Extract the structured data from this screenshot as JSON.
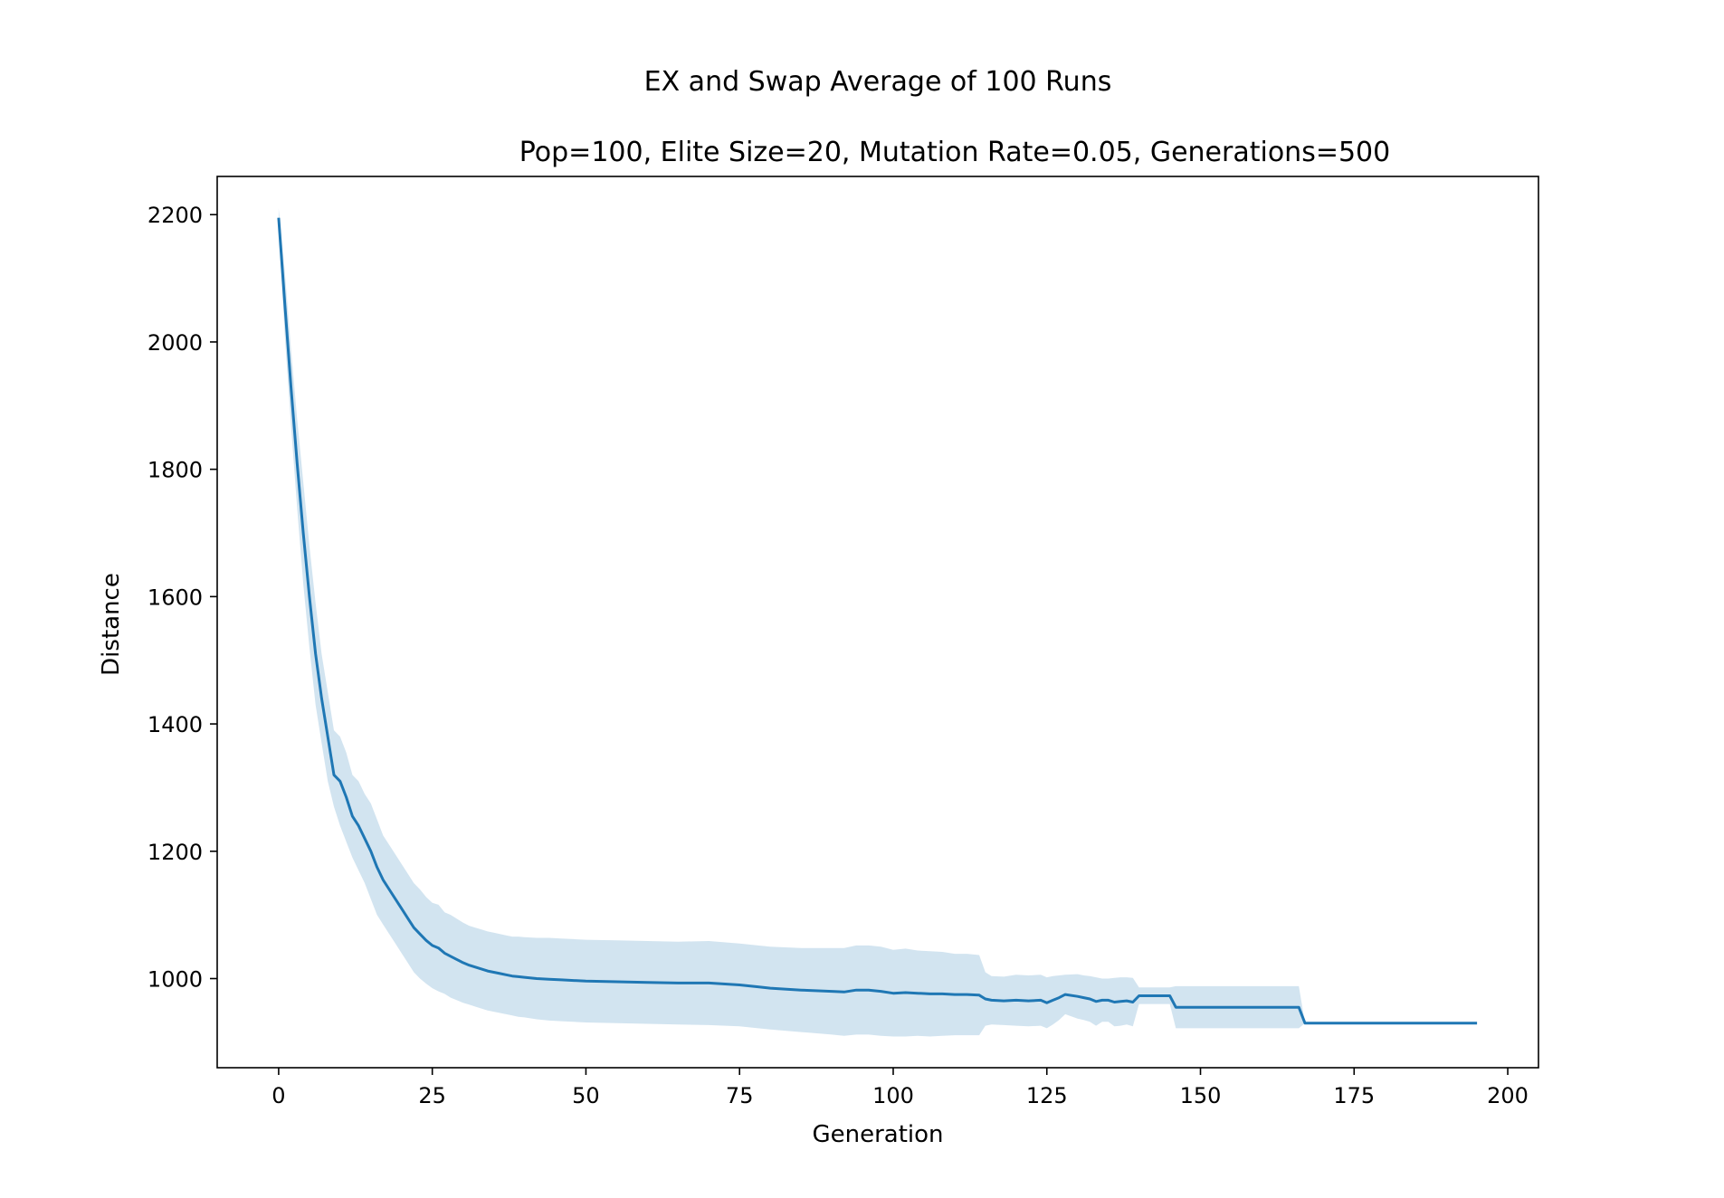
{
  "chart_data": {
    "type": "line",
    "title": "EX and Swap Average of 100 Runs",
    "subtitle": "Pop=100, Elite Size=20, Mutation Rate=0.05, Generations=500",
    "xlabel": "Generation",
    "ylabel": "Distance",
    "xlim": [
      -10,
      205
    ],
    "ylim": [
      860,
      2260
    ],
    "xticks": [
      0,
      25,
      50,
      75,
      100,
      125,
      150,
      175,
      200
    ],
    "yticks": [
      1000,
      1200,
      1400,
      1600,
      1800,
      2000,
      2200
    ],
    "grid": false,
    "colors": {
      "line": "#1f77b4",
      "band": "#1f77b4"
    },
    "series": [
      {
        "x": [
          0,
          1,
          2,
          3,
          4,
          5,
          6,
          7,
          8,
          9,
          10,
          11,
          12,
          13,
          14,
          15,
          16,
          17,
          18,
          19,
          20,
          21,
          22,
          23,
          24,
          25,
          26,
          27,
          28,
          29,
          30,
          31,
          32,
          33,
          34,
          35,
          36,
          37,
          38,
          39,
          40,
          42,
          44,
          46,
          48,
          50,
          55,
          60,
          65,
          70,
          75,
          78,
          80,
          85,
          90,
          92,
          94,
          96,
          98,
          100,
          102,
          104,
          106,
          108,
          110,
          112,
          114,
          115,
          116,
          118,
          120,
          122,
          124,
          125,
          126,
          127,
          128,
          130,
          131,
          132,
          133,
          134,
          135,
          136,
          137,
          138,
          139,
          140,
          141,
          142,
          143,
          144,
          145,
          146,
          150,
          155,
          160,
          165,
          166,
          167,
          168,
          170,
          175,
          180,
          185,
          190,
          195
        ],
        "y": [
          2195,
          2060,
          1930,
          1810,
          1700,
          1600,
          1510,
          1440,
          1380,
          1320,
          1310,
          1285,
          1255,
          1240,
          1220,
          1200,
          1175,
          1155,
          1140,
          1125,
          1110,
          1095,
          1080,
          1070,
          1060,
          1052,
          1048,
          1040,
          1035,
          1030,
          1025,
          1021,
          1018,
          1015,
          1012,
          1010,
          1008,
          1006,
          1004,
          1003,
          1002,
          1000,
          999,
          998,
          997,
          996,
          995,
          994,
          993,
          993,
          990,
          987,
          985,
          982,
          980,
          979,
          982,
          982,
          980,
          977,
          978,
          977,
          976,
          976,
          975,
          975,
          974,
          968,
          966,
          965,
          966,
          965,
          966,
          962,
          966,
          970,
          975,
          972,
          970,
          968,
          964,
          966,
          966,
          963,
          964,
          965,
          963,
          973,
          973,
          973,
          973,
          973,
          973,
          955,
          955,
          955,
          955,
          955,
          955,
          930,
          930,
          930,
          930,
          930,
          930,
          930,
          930
        ],
        "lower": [
          2180,
          2010,
          1870,
          1740,
          1620,
          1520,
          1430,
          1370,
          1310,
          1270,
          1240,
          1215,
          1190,
          1170,
          1150,
          1125,
          1100,
          1085,
          1070,
          1055,
          1040,
          1025,
          1010,
          1000,
          992,
          985,
          980,
          976,
          970,
          966,
          962,
          959,
          956,
          953,
          950,
          948,
          946,
          944,
          942,
          940,
          939,
          936,
          934,
          933,
          932,
          931,
          930,
          929,
          928,
          927,
          925,
          922,
          920,
          916,
          912,
          910,
          912,
          912,
          910,
          909,
          909,
          910,
          909,
          910,
          911,
          911,
          911,
          926,
          928,
          927,
          926,
          925,
          926,
          922,
          928,
          935,
          944,
          937,
          935,
          932,
          926,
          932,
          932,
          925,
          926,
          928,
          925,
          960,
          960,
          960,
          960,
          960,
          960,
          922,
          922,
          922,
          922,
          922,
          922,
          930,
          930,
          930,
          930,
          930,
          930,
          930,
          930
        ],
        "upper": [
          2210,
          2110,
          1990,
          1880,
          1780,
          1680,
          1590,
          1510,
          1450,
          1390,
          1380,
          1355,
          1320,
          1310,
          1290,
          1275,
          1250,
          1225,
          1210,
          1195,
          1180,
          1165,
          1150,
          1140,
          1128,
          1119,
          1116,
          1104,
          1100,
          1094,
          1088,
          1083,
          1080,
          1077,
          1074,
          1072,
          1070,
          1068,
          1066,
          1066,
          1065,
          1064,
          1064,
          1063,
          1062,
          1061,
          1060,
          1059,
          1058,
          1059,
          1055,
          1052,
          1050,
          1048,
          1048,
          1048,
          1052,
          1052,
          1050,
          1045,
          1047,
          1044,
          1043,
          1042,
          1039,
          1039,
          1037,
          1010,
          1004,
          1003,
          1006,
          1005,
          1006,
          1002,
          1004,
          1005,
          1006,
          1007,
          1005,
          1004,
          1002,
          1000,
          1000,
          1001,
          1002,
          1002,
          1001,
          986,
          986,
          986,
          986,
          986,
          986,
          988,
          988,
          988,
          988,
          988,
          988,
          930,
          930,
          930,
          930,
          930,
          930,
          930,
          930
        ]
      }
    ]
  }
}
